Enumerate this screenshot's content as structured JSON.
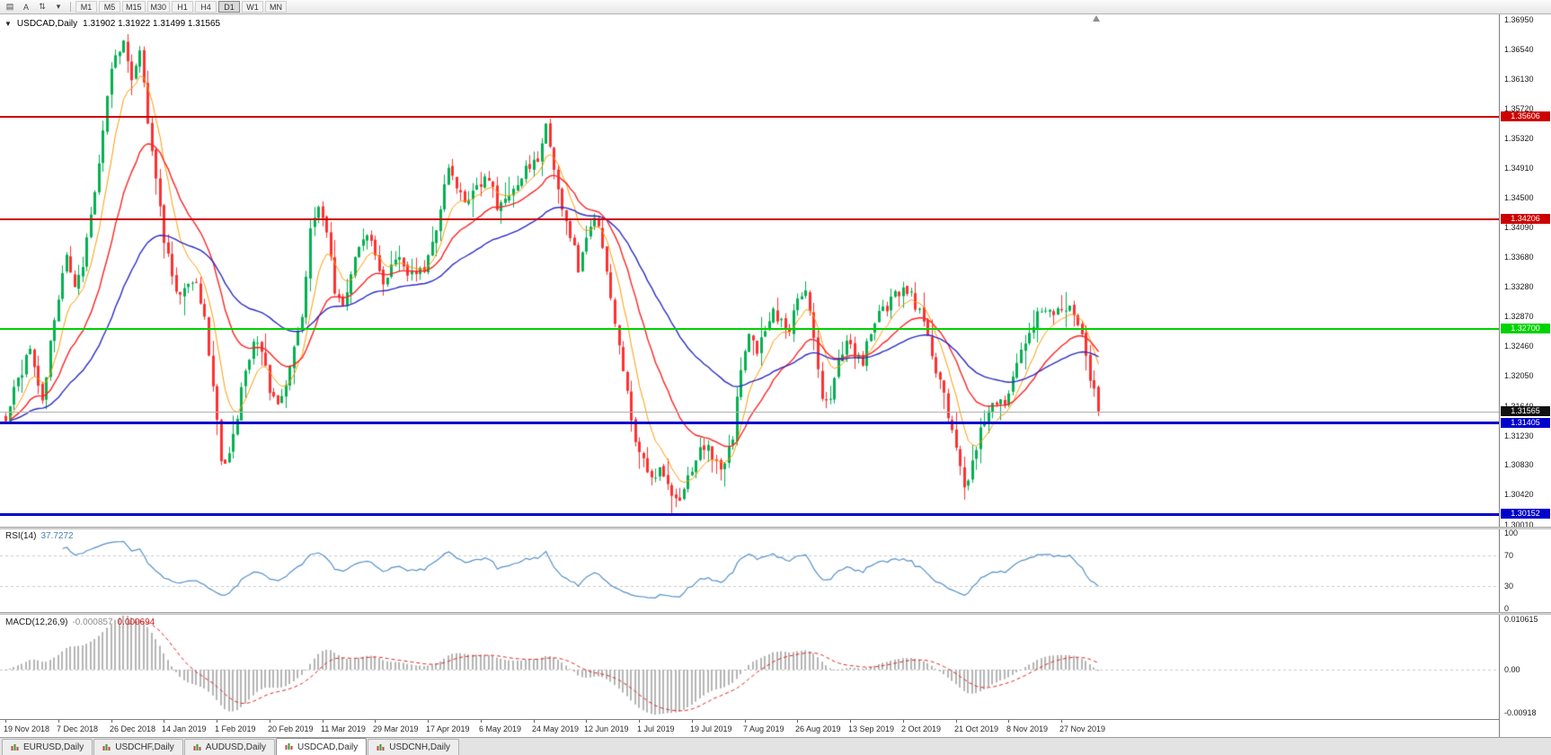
{
  "toolbar": {
    "icons": [
      {
        "name": "chart-window-icon",
        "glyph": "▤"
      },
      {
        "name": "cursor-tool-icon",
        "glyph": "A"
      },
      {
        "name": "scroll-tool-icon",
        "glyph": "⇅"
      },
      {
        "name": "dropdown-arrow-icon",
        "glyph": "▾"
      }
    ],
    "timeframes": [
      {
        "label": "M1",
        "active": false
      },
      {
        "label": "M5",
        "active": false
      },
      {
        "label": "M15",
        "active": false
      },
      {
        "label": "M30",
        "active": false
      },
      {
        "label": "H1",
        "active": false
      },
      {
        "label": "H4",
        "active": false
      },
      {
        "label": "D1",
        "active": true
      },
      {
        "label": "W1",
        "active": false
      },
      {
        "label": "MN",
        "active": false
      }
    ]
  },
  "chart": {
    "title": "USDCAD,Daily",
    "ohlc": "1.31902 1.31922 1.31499 1.31565",
    "price_ticks": [
      "1.36950",
      "1.36540",
      "1.36130",
      "1.35720",
      "1.35320",
      "1.34910",
      "1.34500",
      "1.34090",
      "1.33680",
      "1.33280",
      "1.32870",
      "1.32460",
      "1.32050",
      "1.31640",
      "1.31230",
      "1.30830",
      "1.30420",
      "1.30010"
    ],
    "levels": [
      {
        "price": 1.35606,
        "label": "1.35606",
        "color": "#cc0000",
        "thickness": 2
      },
      {
        "price": 1.34206,
        "label": "1.34206",
        "color": "#cc0000",
        "thickness": 2
      },
      {
        "price": 1.327,
        "label": "1.32700",
        "color": "#00d200",
        "thickness": 2
      },
      {
        "price": 1.31405,
        "label": "1.31405",
        "color": "#0000cc",
        "thickness": 3
      },
      {
        "price": 1.30152,
        "label": "1.30152",
        "color": "#0000cc",
        "thickness": 3
      }
    ],
    "bid_line": {
      "price": 1.31565,
      "label": "1.31565",
      "label_bg": "#111111",
      "line_color": "#b0b0b0"
    },
    "date_ticks": [
      {
        "i": 0,
        "label": "19 Nov 2018"
      },
      {
        "i": 13,
        "label": "7 Dec 2018"
      },
      {
        "i": 26,
        "label": "26 Dec 2018"
      },
      {
        "i": 39,
        "label": "14 Jan 2019"
      },
      {
        "i": 52,
        "label": "1 Feb 2019"
      },
      {
        "i": 65,
        "label": "20 Feb 2019"
      },
      {
        "i": 78,
        "label": "11 Mar 2019"
      },
      {
        "i": 91,
        "label": "29 Mar 2019"
      },
      {
        "i": 104,
        "label": "17 Apr 2019"
      },
      {
        "i": 117,
        "label": "6 May 2019"
      },
      {
        "i": 130,
        "label": "24 May 2019"
      },
      {
        "i": 143,
        "label": "12 Jun 2019"
      },
      {
        "i": 156,
        "label": "1 Jul 2019"
      },
      {
        "i": 169,
        "label": "19 Jul 2019"
      },
      {
        "i": 182,
        "label": "7 Aug 2019"
      },
      {
        "i": 195,
        "label": "26 Aug 2019"
      },
      {
        "i": 208,
        "label": "13 Sep 2019"
      },
      {
        "i": 221,
        "label": "2 Oct 2019"
      },
      {
        "i": 234,
        "label": "21 Oct 2019"
      },
      {
        "i": 247,
        "label": "8 Nov 2019"
      },
      {
        "i": 260,
        "label": "27 Nov 2019"
      }
    ]
  },
  "rsi": {
    "name": "RSI(14)",
    "value": "37.7272",
    "line_color": "#5590c8",
    "dashed_levels": [
      70,
      30
    ],
    "ticks": [
      {
        "v": 100,
        "label": "100"
      },
      {
        "v": 70,
        "label": "70"
      },
      {
        "v": 30,
        "label": "30"
      },
      {
        "v": 0,
        "label": "0"
      }
    ]
  },
  "macd": {
    "name": "MACD(12,26,9)",
    "main_value": "-0.000857",
    "signal_value": "0.000694",
    "histogram_color": "#b4b4b4",
    "signal_color": "#e02222",
    "range": {
      "max": 0.010615,
      "min": -0.00918
    },
    "ticks": [
      {
        "v": 0.010615,
        "label": "0.010615"
      },
      {
        "v": 0,
        "label": "0.00"
      },
      {
        "v": -0.00918,
        "label": "-0.00918"
      }
    ]
  },
  "tabs": [
    {
      "label": "EURUSD,Daily",
      "active": false
    },
    {
      "label": "USDCHF,Daily",
      "active": false
    },
    {
      "label": "AUDUSD,Daily",
      "active": false
    },
    {
      "label": "USDCAD,Daily",
      "active": true
    },
    {
      "label": "USDCNH,Daily",
      "active": false
    }
  ],
  "chart_data": {
    "type": "candlestick",
    "symbol": "USDCAD",
    "timeframe": "Daily",
    "candles_count": 270,
    "price_range": {
      "top": 1.3702,
      "bottom": 1.2998
    },
    "last_candle": {
      "o": 1.31902,
      "h": 1.31922,
      "l": 1.31499,
      "c": 1.31565
    },
    "ma_periods": {
      "orange": 8,
      "red": 21,
      "blue": 50
    },
    "indicators": {
      "rsi_period": 14,
      "macd": [
        12,
        26,
        9
      ],
      "rsi_current": 37.7272,
      "macd_current": -0.000857,
      "macd_signal_current": 0.000694
    },
    "colors": {
      "bull": "#00b050",
      "bear": "#ff3030",
      "ma_fast": "#ff9900",
      "ma_mid": "#ff2222",
      "ma_slow": "#2a2ac8"
    },
    "close_path_anchors": [
      [
        0,
        1.315
      ],
      [
        3,
        1.3205
      ],
      [
        6,
        1.3235
      ],
      [
        9,
        1.317
      ],
      [
        12,
        1.328
      ],
      [
        15,
        1.3375
      ],
      [
        17,
        1.333
      ],
      [
        19,
        1.336
      ],
      [
        21,
        1.342
      ],
      [
        23,
        1.35
      ],
      [
        25,
        1.3595
      ],
      [
        27,
        1.3645
      ],
      [
        29,
        1.366
      ],
      [
        31,
        1.3615
      ],
      [
        33,
        1.3645
      ],
      [
        35,
        1.356
      ],
      [
        37,
        1.348
      ],
      [
        39,
        1.3395
      ],
      [
        41,
        1.3345
      ],
      [
        43,
        1.331
      ],
      [
        45,
        1.333
      ],
      [
        47,
        1.3335
      ],
      [
        49,
        1.329
      ],
      [
        51,
        1.319
      ],
      [
        53,
        1.3085
      ],
      [
        55,
        1.3095
      ],
      [
        57,
        1.315
      ],
      [
        59,
        1.322
      ],
      [
        61,
        1.325
      ],
      [
        63,
        1.324
      ],
      [
        65,
        1.3185
      ],
      [
        67,
        1.317
      ],
      [
        69,
        1.32
      ],
      [
        71,
        1.324
      ],
      [
        73,
        1.329
      ],
      [
        75,
        1.34
      ],
      [
        77,
        1.3445
      ],
      [
        79,
        1.341
      ],
      [
        81,
        1.332
      ],
      [
        83,
        1.33
      ],
      [
        85,
        1.334
      ],
      [
        87,
        1.339
      ],
      [
        89,
        1.3405
      ],
      [
        91,
        1.3365
      ],
      [
        93,
        1.3335
      ],
      [
        95,
        1.336
      ],
      [
        97,
        1.3375
      ],
      [
        99,
        1.3345
      ],
      [
        101,
        1.334
      ],
      [
        103,
        1.3355
      ],
      [
        105,
        1.3385
      ],
      [
        107,
        1.344
      ],
      [
        109,
        1.3485
      ],
      [
        111,
        1.347
      ],
      [
        113,
        1.344
      ],
      [
        115,
        1.3455
      ],
      [
        117,
        1.347
      ],
      [
        119,
        1.348
      ],
      [
        121,
        1.344
      ],
      [
        123,
        1.3445
      ],
      [
        125,
        1.347
      ],
      [
        127,
        1.348
      ],
      [
        129,
        1.3495
      ],
      [
        131,
        1.3505
      ],
      [
        133,
        1.3545
      ],
      [
        135,
        1.349
      ],
      [
        137,
        1.344
      ],
      [
        139,
        1.34
      ],
      [
        141,
        1.3355
      ],
      [
        143,
        1.339
      ],
      [
        145,
        1.343
      ],
      [
        147,
        1.338
      ],
      [
        149,
        1.331
      ],
      [
        151,
        1.324
      ],
      [
        153,
        1.318
      ],
      [
        155,
        1.312
      ],
      [
        157,
        1.3085
      ],
      [
        159,
        1.307
      ],
      [
        161,
        1.3075
      ],
      [
        163,
        1.305
      ],
      [
        165,
        1.303
      ],
      [
        167,
        1.3045
      ],
      [
        169,
        1.308
      ],
      [
        171,
        1.3105
      ],
      [
        173,
        1.311
      ],
      [
        175,
        1.3085
      ],
      [
        177,
        1.308
      ],
      [
        179,
        1.312
      ],
      [
        181,
        1.322
      ],
      [
        183,
        1.3265
      ],
      [
        185,
        1.3235
      ],
      [
        187,
        1.327
      ],
      [
        189,
        1.3295
      ],
      [
        191,
        1.328
      ],
      [
        193,
        1.327
      ],
      [
        195,
        1.3305
      ],
      [
        197,
        1.332
      ],
      [
        199,
        1.326
      ],
      [
        201,
        1.317
      ],
      [
        203,
        1.318
      ],
      [
        205,
        1.323
      ],
      [
        207,
        1.325
      ],
      [
        209,
        1.3235
      ],
      [
        211,
        1.3225
      ],
      [
        213,
        1.3265
      ],
      [
        215,
        1.329
      ],
      [
        217,
        1.33
      ],
      [
        219,
        1.3315
      ],
      [
        221,
        1.333
      ],
      [
        223,
        1.3315
      ],
      [
        225,
        1.329
      ],
      [
        227,
        1.3255
      ],
      [
        229,
        1.3215
      ],
      [
        231,
        1.318
      ],
      [
        233,
        1.313
      ],
      [
        235,
        1.3075
      ],
      [
        236,
        1.3045
      ],
      [
        238,
        1.309
      ],
      [
        240,
        1.313
      ],
      [
        242,
        1.3155
      ],
      [
        244,
        1.317
      ],
      [
        246,
        1.3165
      ],
      [
        248,
        1.32
      ],
      [
        250,
        1.3245
      ],
      [
        252,
        1.327
      ],
      [
        254,
        1.329
      ],
      [
        256,
        1.33
      ],
      [
        258,
        1.3285
      ],
      [
        260,
        1.3295
      ],
      [
        262,
        1.3305
      ],
      [
        264,
        1.328
      ],
      [
        266,
        1.323
      ],
      [
        268,
        1.318
      ],
      [
        269,
        1.31565
      ]
    ]
  }
}
